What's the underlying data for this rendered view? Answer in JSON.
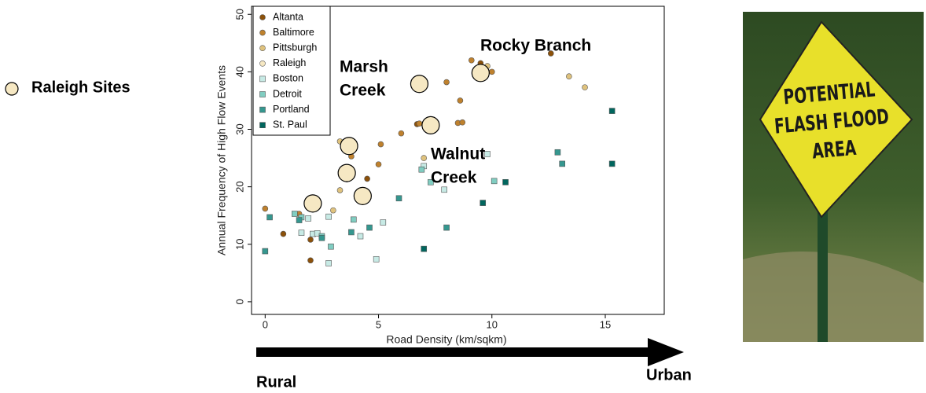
{
  "chart_data": {
    "type": "scatter",
    "xlabel": "Road Density (km/sqkm)",
    "ylabel": "Annual Frequency of High Flow Events",
    "xlim": [
      -0.6,
      17.6
    ],
    "ylim": [
      -2.2,
      51.4
    ],
    "xticks": [
      0,
      5,
      10,
      15
    ],
    "yticks": [
      0,
      10,
      20,
      30,
      40,
      50
    ],
    "legend_position": "upper left",
    "series": [
      {
        "name": "Altanta",
        "color": "#8c510a",
        "marker": "circle",
        "marker_size": 6,
        "x": [
          0.8,
          2.0,
          2.0,
          3.6,
          4.5,
          6.7,
          9.5,
          12.6
        ],
        "values": [
          11.8,
          10.8,
          7.2,
          21.3,
          21.4,
          30.9,
          41.5,
          43.2
        ]
      },
      {
        "name": "Baltimore",
        "color": "#bf812d",
        "marker": "circle",
        "marker_size": 6,
        "x": [
          0,
          1.5,
          3.8,
          5.1,
          5.0,
          6.0,
          6.8,
          8.0,
          8.6,
          8.5,
          8.7,
          9.1,
          10.0
        ],
        "values": [
          16.2,
          15.3,
          25.3,
          27.4,
          23.9,
          29.3,
          31.0,
          38.2,
          35.0,
          31.1,
          31.2,
          42.0,
          40.0
        ]
      },
      {
        "name": "Pittsburgh",
        "color": "#dfc27d",
        "marker": "circle",
        "marker_size": 6,
        "x": [
          3.3,
          3.3,
          3.0,
          7.0,
          7.3,
          9.8,
          13.4,
          14.1
        ],
        "values": [
          19.4,
          27.9,
          15.9,
          25.0,
          31.5,
          41.0,
          39.2,
          37.3
        ]
      },
      {
        "name": "Raleigh",
        "color": "#f6e8c3",
        "marker": "circle",
        "marker_size": 11,
        "x": [
          2.1,
          3.6,
          3.7,
          4.3,
          6.8,
          7.3,
          9.5
        ],
        "values": [
          17.1,
          22.4,
          27.1,
          18.4,
          37.9,
          30.7,
          39.8
        ]
      },
      {
        "name": "Boston",
        "color": "#c7eae5",
        "marker": "square",
        "marker_size": 6,
        "x": [
          1.6,
          1.9,
          2.1,
          2.3,
          2.8,
          2.8,
          4.2,
          4.9,
          5.2,
          7.0,
          7.9,
          9.8
        ],
        "values": [
          12.0,
          14.5,
          11.8,
          11.9,
          14.8,
          6.7,
          11.4,
          7.4,
          13.8,
          23.6,
          19.5,
          25.7
        ]
      },
      {
        "name": "Detroit",
        "color": "#80cdc1",
        "marker": "square",
        "marker_size": 6,
        "x": [
          1.3,
          1.6,
          2.5,
          2.9,
          3.9,
          6.9,
          7.3,
          10.1
        ],
        "values": [
          15.3,
          14.7,
          11.4,
          9.6,
          14.3,
          23.0,
          20.8,
          21.0
        ]
      },
      {
        "name": "Portland",
        "color": "#35978f",
        "marker": "square",
        "marker_size": 6,
        "x": [
          0,
          0.2,
          1.5,
          2.5,
          3.8,
          4.6,
          5.9,
          8.0,
          12.9,
          13.1
        ],
        "values": [
          8.8,
          14.7,
          14.2,
          11.1,
          12.1,
          12.9,
          18.0,
          12.9,
          26.0,
          24.0
        ]
      },
      {
        "name": "St. Paul",
        "color": "#01665e",
        "marker": "square",
        "marker_size": 6,
        "x": [
          7.0,
          9.6,
          10.6,
          15.3,
          15.3
        ],
        "values": [
          9.2,
          17.2,
          20.8,
          33.2,
          24.0
        ]
      }
    ],
    "annotations": [
      [
        "Marsh",
        "Creek"
      ],
      [
        "Rocky Branch"
      ],
      [
        "Walnut",
        "Creek"
      ]
    ],
    "highlight_label": "Raleigh Sites",
    "arrow_labels": [
      "Rural",
      "Urban"
    ],
    "sign_text": [
      "POTENTIAL",
      "FLASH FLOOD",
      "AREA"
    ]
  }
}
